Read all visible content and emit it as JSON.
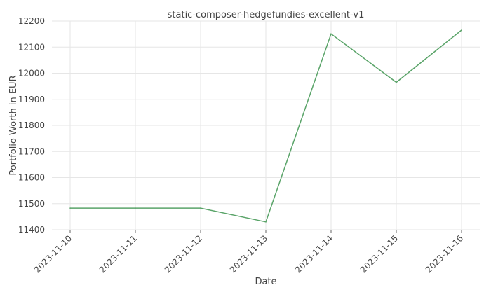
{
  "chart_data": {
    "type": "line",
    "title": "static-composer-hedgefundies-excellent-v1",
    "xlabel": "Date",
    "ylabel": "Portfolio Worth in EUR",
    "x": [
      "2023-11-10",
      "2023-11-11",
      "2023-11-12",
      "2023-11-13",
      "2023-11-14",
      "2023-11-15",
      "2023-11-16"
    ],
    "series": [
      {
        "values": [
          11483,
          11483,
          11483,
          11430,
          12151,
          11965,
          12165
        ],
        "color": "#5aa469"
      }
    ],
    "ylim": [
      11400,
      12200
    ],
    "yticks": [
      11400,
      11500,
      11600,
      11700,
      11800,
      11900,
      12000,
      12100,
      12200
    ],
    "grid": true,
    "legend": "none"
  }
}
